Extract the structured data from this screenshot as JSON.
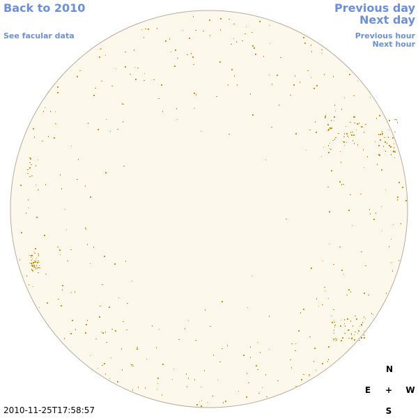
{
  "nav": {
    "back": "Back to 2010",
    "facular": "See facular data",
    "previous_day": "Previous day",
    "next_day": "Next day",
    "previous_hour": "Previous hour",
    "next_hour": "Next hour"
  },
  "timestamp": "2010-11-25T17:58:57",
  "compass": {
    "north": "N",
    "east": "E",
    "center": "+",
    "west": "W",
    "south": "S"
  }
}
